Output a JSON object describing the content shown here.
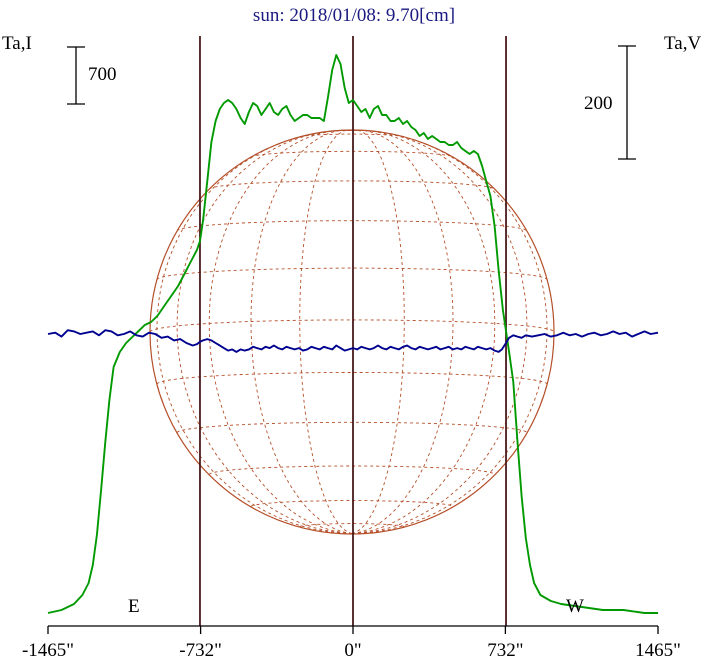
{
  "chart_data": {
    "type": "line",
    "title": "sun: 2018/01/08: 9.70[cm]",
    "left_axis_label": "Ta,I",
    "right_axis_label": "Ta,V",
    "scale_bar_left": "700",
    "scale_bar_right": "200",
    "limb_labels": [
      "E",
      "W"
    ],
    "x_unit": "arcsec",
    "xlim": [
      -1465,
      1465
    ],
    "x_ticks": [
      {
        "value": -1465,
        "label": "-1465\""
      },
      {
        "value": -732,
        "label": "-732\""
      },
      {
        "value": 0,
        "label": "0\""
      },
      {
        "value": 732,
        "label": "732\""
      },
      {
        "value": 1465,
        "label": "1465\""
      }
    ],
    "limb_lines": [
      -735,
      0,
      735
    ],
    "series": [
      {
        "color": "#009a00",
        "axis": "left",
        "points": [
          [
            -1465,
            0.01
          ],
          [
            -1400,
            0.02
          ],
          [
            -1340,
            0.04
          ],
          [
            -1300,
            0.07
          ],
          [
            -1270,
            0.11
          ],
          [
            -1250,
            0.17
          ],
          [
            -1230,
            0.27
          ],
          [
            -1210,
            0.42
          ],
          [
            -1190,
            0.58
          ],
          [
            -1170,
            0.72
          ],
          [
            -1150,
            0.83
          ],
          [
            -1120,
            0.88
          ],
          [
            -1090,
            0.91
          ],
          [
            -1060,
            0.93
          ],
          [
            -1030,
            0.95
          ],
          [
            -1000,
            0.97
          ],
          [
            -970,
            0.98
          ],
          [
            -940,
            1.0
          ],
          [
            -920,
            1.02
          ],
          [
            -900,
            1.04
          ],
          [
            -870,
            1.07
          ],
          [
            -840,
            1.1
          ],
          [
            -810,
            1.14
          ],
          [
            -780,
            1.18
          ],
          [
            -750,
            1.22
          ],
          [
            -735,
            1.25
          ],
          [
            -720,
            1.32
          ],
          [
            -700,
            1.45
          ],
          [
            -680,
            1.58
          ],
          [
            -660,
            1.65
          ],
          [
            -640,
            1.69
          ],
          [
            -620,
            1.71
          ],
          [
            -600,
            1.72
          ],
          [
            -580,
            1.71
          ],
          [
            -560,
            1.69
          ],
          [
            -540,
            1.66
          ],
          [
            -520,
            1.64
          ],
          [
            -500,
            1.68
          ],
          [
            -480,
            1.71
          ],
          [
            -460,
            1.7
          ],
          [
            -440,
            1.67
          ],
          [
            -420,
            1.69
          ],
          [
            -400,
            1.71
          ],
          [
            -380,
            1.68
          ],
          [
            -360,
            1.67
          ],
          [
            -340,
            1.69
          ],
          [
            -320,
            1.7
          ],
          [
            -300,
            1.67
          ],
          [
            -280,
            1.65
          ],
          [
            -260,
            1.66
          ],
          [
            -240,
            1.67
          ],
          [
            -220,
            1.67
          ],
          [
            -200,
            1.66
          ],
          [
            -180,
            1.66
          ],
          [
            -160,
            1.66
          ],
          [
            -140,
            1.65
          ],
          [
            -120,
            1.73
          ],
          [
            -100,
            1.82
          ],
          [
            -80,
            1.87
          ],
          [
            -60,
            1.84
          ],
          [
            -40,
            1.76
          ],
          [
            -20,
            1.71
          ],
          [
            0,
            1.72
          ],
          [
            20,
            1.7
          ],
          [
            40,
            1.68
          ],
          [
            60,
            1.69
          ],
          [
            80,
            1.66
          ],
          [
            100,
            1.69
          ],
          [
            120,
            1.7
          ],
          [
            140,
            1.67
          ],
          [
            160,
            1.67
          ],
          [
            180,
            1.65
          ],
          [
            200,
            1.65
          ],
          [
            220,
            1.66
          ],
          [
            240,
            1.64
          ],
          [
            260,
            1.65
          ],
          [
            280,
            1.63
          ],
          [
            300,
            1.62
          ],
          [
            320,
            1.6
          ],
          [
            340,
            1.61
          ],
          [
            360,
            1.59
          ],
          [
            380,
            1.6
          ],
          [
            400,
            1.59
          ],
          [
            420,
            1.58
          ],
          [
            440,
            1.58
          ],
          [
            460,
            1.57
          ],
          [
            480,
            1.57
          ],
          [
            500,
            1.58
          ],
          [
            520,
            1.56
          ],
          [
            540,
            1.55
          ],
          [
            560,
            1.54
          ],
          [
            580,
            1.55
          ],
          [
            600,
            1.54
          ],
          [
            620,
            1.5
          ],
          [
            640,
            1.45
          ],
          [
            660,
            1.4
          ],
          [
            680,
            1.3
          ],
          [
            700,
            1.15
          ],
          [
            720,
            1.02
          ],
          [
            735,
            0.95
          ],
          [
            750,
            0.88
          ],
          [
            770,
            0.78
          ],
          [
            790,
            0.58
          ],
          [
            810,
            0.4
          ],
          [
            830,
            0.26
          ],
          [
            850,
            0.17
          ],
          [
            870,
            0.11
          ],
          [
            900,
            0.07
          ],
          [
            950,
            0.05
          ],
          [
            1000,
            0.04
          ],
          [
            1100,
            0.03
          ],
          [
            1200,
            0.02
          ],
          [
            1300,
            0.02
          ],
          [
            1400,
            0.01
          ],
          [
            1465,
            0.01
          ]
        ]
      },
      {
        "color": "#000090",
        "axis": "right",
        "points": [
          [
            -1465,
            0.0
          ],
          [
            -1430,
            0.01
          ],
          [
            -1400,
            -0.02
          ],
          [
            -1370,
            0.03
          ],
          [
            -1340,
            0.02
          ],
          [
            -1310,
            0.0
          ],
          [
            -1280,
            0.01
          ],
          [
            -1250,
            0.02
          ],
          [
            -1220,
            -0.01
          ],
          [
            -1190,
            0.03
          ],
          [
            -1160,
            0.02
          ],
          [
            -1130,
            -0.01
          ],
          [
            -1100,
            0.0
          ],
          [
            -1070,
            0.02
          ],
          [
            -1040,
            -0.01
          ],
          [
            -1010,
            -0.02
          ],
          [
            -980,
            0.01
          ],
          [
            -950,
            0.0
          ],
          [
            -920,
            -0.03
          ],
          [
            -890,
            -0.02
          ],
          [
            -860,
            -0.05
          ],
          [
            -830,
            -0.04
          ],
          [
            -800,
            -0.07
          ],
          [
            -770,
            -0.09
          ],
          [
            -750,
            -0.08
          ],
          [
            -735,
            -0.06
          ],
          [
            -720,
            -0.05
          ],
          [
            -700,
            -0.04
          ],
          [
            -680,
            -0.05
          ],
          [
            -660,
            -0.07
          ],
          [
            -640,
            -0.09
          ],
          [
            -620,
            -0.11
          ],
          [
            -600,
            -0.13
          ],
          [
            -580,
            -0.12
          ],
          [
            -560,
            -0.14
          ],
          [
            -540,
            -0.12
          ],
          [
            -520,
            -0.13
          ],
          [
            -500,
            -0.12
          ],
          [
            -480,
            -0.1
          ],
          [
            -460,
            -0.11
          ],
          [
            -440,
            -0.12
          ],
          [
            -420,
            -0.1
          ],
          [
            -400,
            -0.11
          ],
          [
            -380,
            -0.09
          ],
          [
            -360,
            -0.11
          ],
          [
            -340,
            -0.12
          ],
          [
            -320,
            -0.1
          ],
          [
            -300,
            -0.11
          ],
          [
            -280,
            -0.12
          ],
          [
            -260,
            -0.11
          ],
          [
            -240,
            -0.13
          ],
          [
            -220,
            -0.12
          ],
          [
            -200,
            -0.1
          ],
          [
            -180,
            -0.11
          ],
          [
            -160,
            -0.12
          ],
          [
            -140,
            -0.1
          ],
          [
            -120,
            -0.11
          ],
          [
            -100,
            -0.12
          ],
          [
            -80,
            -0.09
          ],
          [
            -60,
            -0.11
          ],
          [
            -40,
            -0.13
          ],
          [
            -20,
            -0.12
          ],
          [
            0,
            -0.11
          ],
          [
            20,
            -0.12
          ],
          [
            40,
            -0.1
          ],
          [
            60,
            -0.11
          ],
          [
            80,
            -0.12
          ],
          [
            100,
            -0.11
          ],
          [
            120,
            -0.09
          ],
          [
            140,
            -0.11
          ],
          [
            160,
            -0.12
          ],
          [
            180,
            -0.1
          ],
          [
            200,
            -0.11
          ],
          [
            220,
            -0.12
          ],
          [
            240,
            -0.1
          ],
          [
            260,
            -0.09
          ],
          [
            280,
            -0.11
          ],
          [
            300,
            -0.12
          ],
          [
            320,
            -0.1
          ],
          [
            340,
            -0.11
          ],
          [
            360,
            -0.12
          ],
          [
            380,
            -0.11
          ],
          [
            400,
            -0.1
          ],
          [
            420,
            -0.12
          ],
          [
            440,
            -0.11
          ],
          [
            460,
            -0.1
          ],
          [
            480,
            -0.12
          ],
          [
            500,
            -0.11
          ],
          [
            520,
            -0.12
          ],
          [
            540,
            -0.1
          ],
          [
            560,
            -0.11
          ],
          [
            580,
            -0.12
          ],
          [
            600,
            -0.1
          ],
          [
            620,
            -0.11
          ],
          [
            640,
            -0.12
          ],
          [
            660,
            -0.11
          ],
          [
            680,
            -0.13
          ],
          [
            700,
            -0.14
          ],
          [
            715,
            -0.12
          ],
          [
            735,
            -0.07
          ],
          [
            750,
            -0.03
          ],
          [
            770,
            -0.01
          ],
          [
            790,
            -0.02
          ],
          [
            810,
            -0.03
          ],
          [
            830,
            -0.01
          ],
          [
            860,
            -0.02
          ],
          [
            890,
            -0.01
          ],
          [
            920,
            0.0
          ],
          [
            950,
            -0.02
          ],
          [
            980,
            -0.01
          ],
          [
            1010,
            0.01
          ],
          [
            1040,
            -0.01
          ],
          [
            1070,
            0.0
          ],
          [
            1100,
            -0.02
          ],
          [
            1130,
            0.0
          ],
          [
            1160,
            0.01
          ],
          [
            1190,
            -0.01
          ],
          [
            1220,
            0.0
          ],
          [
            1250,
            0.02
          ],
          [
            1280,
            0.0
          ],
          [
            1310,
            0.01
          ],
          [
            1340,
            -0.02
          ],
          [
            1370,
            0.0
          ],
          [
            1400,
            0.02
          ],
          [
            1430,
            0.0
          ],
          [
            1465,
            0.01
          ]
        ]
      }
    ],
    "colors": {
      "grid_disk": "#b5502a",
      "limb_line": "#4a1a1a",
      "axis": "#000000",
      "title": "#1a1a80"
    }
  }
}
